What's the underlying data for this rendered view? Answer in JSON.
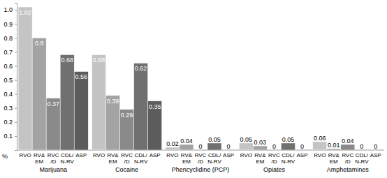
{
  "chart_data": {
    "type": "bar",
    "ylabel": "%",
    "categories": [
      "Marijuana",
      "Cocaine",
      "Phencyclidine (PCP)",
      "Opiates",
      "Amphetamines"
    ],
    "series": [
      {
        "name": "RVO",
        "color": "#c4c4c4",
        "values": [
          1.02,
          0.68,
          0.02,
          0.05,
          0.06
        ]
      },
      {
        "name": "RV&\nEM",
        "color": "#a3a3a3",
        "values": [
          0.8,
          0.39,
          0.04,
          0.03,
          0.01
        ]
      },
      {
        "name": "RVC\n/D",
        "color": "#8a8a8a",
        "values": [
          0.37,
          0.29,
          0,
          0,
          0.04
        ]
      },
      {
        "name": "CDL/\nN-RV",
        "color": "#707070",
        "values": [
          0.68,
          0.62,
          0.05,
          0.05,
          0
        ]
      },
      {
        "name": "ASP",
        "color": "#5c5c5c",
        "values": [
          0.56,
          0.35,
          0,
          0,
          0
        ]
      }
    ],
    "ylim": [
      0,
      1.05
    ],
    "yticks": [
      0.1,
      0.2,
      0.3,
      0.4,
      0.5,
      0.6,
      0.7,
      0.8,
      0.9,
      {
        "value": 1,
        "label": "1.0"
      }
    ],
    "data_labels": true
  }
}
